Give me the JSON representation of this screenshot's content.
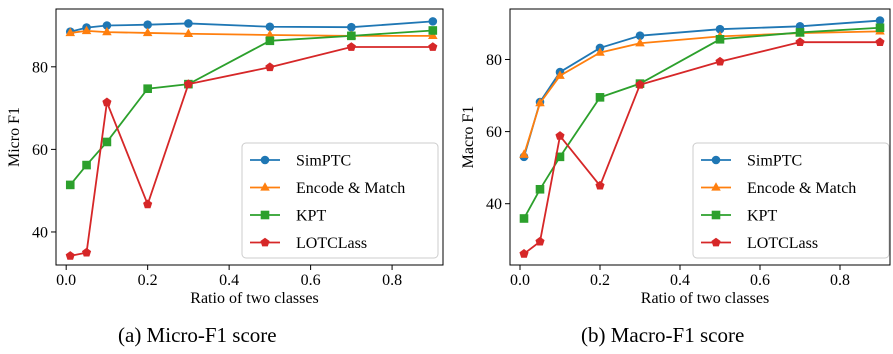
{
  "figure": {
    "captions": [
      "(a) Micro-F1 score",
      "(b) Macro-F1 score"
    ]
  },
  "chart_data": [
    {
      "type": "line",
      "caption": "(a) Micro-F1 score",
      "xlabel": "Ratio of two classes",
      "ylabel": "Micro F1",
      "xlim": [
        -0.025,
        0.925
      ],
      "ylim": [
        32,
        94
      ],
      "xticks": [
        0.0,
        0.2,
        0.4,
        0.6,
        0.8
      ],
      "xtick_labels": [
        "0.0",
        "0.2",
        "0.4",
        "0.6",
        "0.8"
      ],
      "yticks": [
        40,
        60,
        80
      ],
      "ytick_labels": [
        "40",
        "60",
        "80"
      ],
      "legend_position": "lower-right",
      "grid": false,
      "x": [
        0.01,
        0.05,
        0.1,
        0.2,
        0.3,
        0.5,
        0.7,
        0.9
      ],
      "series": [
        {
          "name": "SimPTC",
          "color": "#1f77b4",
          "marker": "circle",
          "values": [
            88.5,
            89.5,
            90.0,
            90.2,
            90.5,
            89.7,
            89.6,
            91.0
          ]
        },
        {
          "name": "Encode & Match",
          "color": "#ff7f0e",
          "marker": "triangle",
          "values": [
            88.2,
            88.7,
            88.4,
            88.2,
            88.0,
            87.7,
            87.5,
            87.5
          ]
        },
        {
          "name": "KPT",
          "color": "#2ca02c",
          "marker": "square",
          "values": [
            51.4,
            56.2,
            61.8,
            74.7,
            75.8,
            86.3,
            87.5,
            88.8
          ]
        },
        {
          "name": "LOTCLass",
          "color": "#d62728",
          "marker": "pentagon",
          "values": [
            34.2,
            35.0,
            71.4,
            46.7,
            75.8,
            79.9,
            84.8,
            84.8
          ]
        }
      ]
    },
    {
      "type": "line",
      "caption": "(b) Macro-F1 score",
      "xlabel": "Ratio of two classes",
      "ylabel": "Macro F1",
      "xlim": [
        -0.025,
        0.925
      ],
      "ylim": [
        23,
        94
      ],
      "xticks": [
        0.0,
        0.2,
        0.4,
        0.6,
        0.8
      ],
      "xtick_labels": [
        "0.0",
        "0.2",
        "0.4",
        "0.6",
        "0.8"
      ],
      "yticks": [
        40,
        60,
        80
      ],
      "ytick_labels": [
        "40",
        "60",
        "80"
      ],
      "legend_position": "lower-right",
      "grid": false,
      "x": [
        0.01,
        0.05,
        0.1,
        0.2,
        0.3,
        0.5,
        0.7,
        0.9
      ],
      "series": [
        {
          "name": "SimPTC",
          "color": "#1f77b4",
          "marker": "circle",
          "values": [
            53.0,
            68.2,
            76.5,
            83.2,
            86.6,
            88.4,
            89.2,
            90.8
          ]
        },
        {
          "name": "Encode & Match",
          "color": "#ff7f0e",
          "marker": "triangle",
          "values": [
            53.6,
            67.9,
            75.5,
            81.9,
            84.5,
            86.4,
            87.3,
            87.8
          ]
        },
        {
          "name": "KPT",
          "color": "#2ca02c",
          "marker": "square",
          "values": [
            35.9,
            44.0,
            53.0,
            69.5,
            73.3,
            85.6,
            87.5,
            88.8
          ]
        },
        {
          "name": "LOTCLass",
          "color": "#d62728",
          "marker": "pentagon",
          "values": [
            26.1,
            29.5,
            58.8,
            45.0,
            73.0,
            79.4,
            84.8,
            84.8
          ]
        }
      ]
    }
  ]
}
